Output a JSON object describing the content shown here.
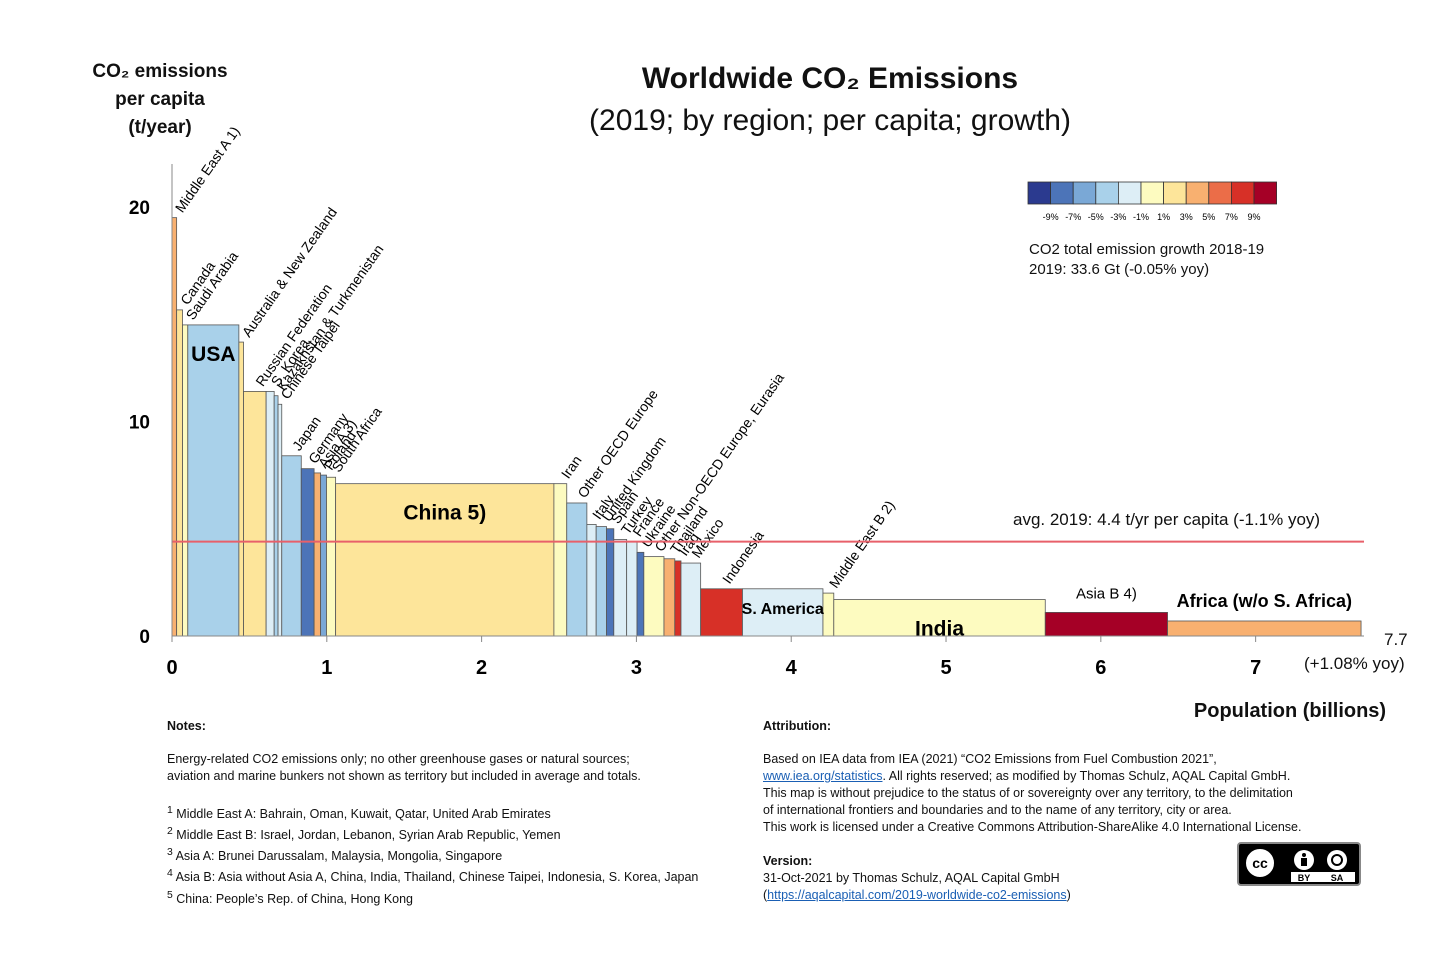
{
  "title": "Worldwide CO₂ Emissions",
  "subtitle": "(2019; by region; per capita; growth)",
  "y_axis_label": [
    "CO₂ emissions",
    "per capita",
    "(t/year)"
  ],
  "x_axis_label": "Population (billions)",
  "legend": {
    "colors": [
      "#2b3a8f",
      "#4c74b8",
      "#7aa8d6",
      "#a9d1ea",
      "#ddeef6",
      "#fdfbc0",
      "#fde59a",
      "#f8b070",
      "#eb6d48",
      "#d73027",
      "#a50026"
    ],
    "tick_labels": [
      "-9%",
      "-7%",
      "-5%",
      "-3%",
      "-1%",
      "1%",
      "3%",
      "5%",
      "7%",
      "9%"
    ],
    "note_line1": "CO2 total emission growth 2018-19",
    "note_line2": "2019: 33.6 Gt (-0.05% yoy)"
  },
  "average_label": "avg. 2019: 4.4 t/yr per capita (-1.1% yoy)",
  "total_population_label": "7.7",
  "total_growth_label": "(+1.08% yoy)",
  "chart_data": {
    "type": "variable-width bar",
    "x_unit": "billions of people",
    "y_unit": "t CO2 per capita per year",
    "xlim": [
      0,
      7.7
    ],
    "ylim": [
      0,
      22
    ],
    "x_ticks": [
      0,
      1,
      2,
      3,
      4,
      5,
      6,
      7
    ],
    "y_ticks": [
      0,
      10,
      20
    ],
    "average": 4.4,
    "regions": [
      {
        "label": "Middle East A 1)",
        "population": 0.03,
        "value": 19.5,
        "color": "#f8b070"
      },
      {
        "label": "Canada",
        "population": 0.038,
        "value": 15.2,
        "color": "#fde59a"
      },
      {
        "label": "Saudi Arabia",
        "population": 0.034,
        "value": 14.5,
        "color": "#fdfbc0"
      },
      {
        "label": "USA",
        "population": 0.33,
        "value": 14.5,
        "color": "#a9d1ea"
      },
      {
        "label": "Australia & New Zealand",
        "population": 0.03,
        "value": 13.7,
        "color": "#fde59a"
      },
      {
        "label": "Russian Federation",
        "population": 0.146,
        "value": 11.4,
        "color": "#fde59a"
      },
      {
        "label": "S. Korea",
        "population": 0.052,
        "value": 11.4,
        "color": "#ddeef6"
      },
      {
        "label": "Kazakhstan & Turkmenistan",
        "population": 0.025,
        "value": 11.2,
        "color": "#a9d1ea"
      },
      {
        "label": "Chinese Taipei",
        "population": 0.024,
        "value": 10.8,
        "color": "#ddeef6"
      },
      {
        "label": "Japan",
        "population": 0.126,
        "value": 8.4,
        "color": "#a9d1ea"
      },
      {
        "label": "Germany",
        "population": 0.083,
        "value": 7.8,
        "color": "#4c74b8"
      },
      {
        "label": "Asia A 3)",
        "population": 0.042,
        "value": 7.6,
        "color": "#f8b070"
      },
      {
        "label": "Poland",
        "population": 0.038,
        "value": 7.5,
        "color": "#7aa8d6"
      },
      {
        "label": "South Africa",
        "population": 0.059,
        "value": 7.4,
        "color": "#fdfbc0"
      },
      {
        "label": "China 5)",
        "population": 1.41,
        "value": 7.1,
        "color": "#fde59a"
      },
      {
        "label": "Iran",
        "population": 0.083,
        "value": 7.1,
        "color": "#fdfbc0"
      },
      {
        "label": "Other OECD Europe",
        "population": 0.13,
        "value": 6.2,
        "color": "#a9d1ea"
      },
      {
        "label": "Italy",
        "population": 0.06,
        "value": 5.2,
        "color": "#ddeef6"
      },
      {
        "label": "United Kingdom",
        "population": 0.067,
        "value": 5.1,
        "color": "#a9d1ea"
      },
      {
        "label": "Spain",
        "population": 0.047,
        "value": 5.0,
        "color": "#4c74b8"
      },
      {
        "label": "Turkey",
        "population": 0.083,
        "value": 4.5,
        "color": "#ddeef6"
      },
      {
        "label": "France",
        "population": 0.067,
        "value": 4.4,
        "color": "#ddeef6"
      },
      {
        "label": "Ukraine",
        "population": 0.044,
        "value": 3.9,
        "color": "#4c74b8"
      },
      {
        "label": "Other Non-OECD Europe, Eurasia",
        "population": 0.13,
        "value": 3.7,
        "color": "#fdfbc0"
      },
      {
        "label": "Thailand",
        "population": 0.07,
        "value": 3.6,
        "color": "#f8b070"
      },
      {
        "label": "Iraq",
        "population": 0.04,
        "value": 3.5,
        "color": "#d73027"
      },
      {
        "label": "Mexico",
        "population": 0.127,
        "value": 3.4,
        "color": "#ddeef6"
      },
      {
        "label": "Indonesia",
        "population": 0.27,
        "value": 2.2,
        "color": "#d73027"
      },
      {
        "label": "S. America",
        "population": 0.52,
        "value": 2.2,
        "color": "#ddeef6"
      },
      {
        "label": "Middle East B 2)",
        "population": 0.07,
        "value": 2.0,
        "color": "#fdfbc0"
      },
      {
        "label": "India",
        "population": 1.366,
        "value": 1.7,
        "color": "#fdfbc0"
      },
      {
        "label": "Asia B 4)",
        "population": 0.79,
        "value": 1.1,
        "color": "#a50026"
      },
      {
        "label": "Africa (w/o S. Africa)",
        "population": 1.25,
        "value": 0.7,
        "color": "#f8b070"
      }
    ]
  },
  "notes": {
    "heading": "Notes:",
    "line1": "Energy-related CO2 emissions only; no other greenhouse gases or natural sources;",
    "line2": "aviation and marine bunkers not shown as territory but included in average and totals.",
    "fn1": "Middle East A: Bahrain, Oman, Kuwait, Qatar, United Arab Emirates",
    "fn2": "Middle East B: Israel, Jordan, Lebanon, Syrian Arab Republic, Yemen",
    "fn3": "Asia A: Brunei Darussalam, Malaysia, Mongolia, Singapore",
    "fn4": "Asia B: Asia without Asia A, China, India, Thailand, Chinese Taipei, Indonesia, S. Korea, Japan",
    "fn5": "China: People’s Rep. of China, Hong Kong"
  },
  "attribution": {
    "heading": "Attribution:",
    "line1": "Based on IEA data from IEA (2021) “CO2 Emissions from Fuel Combustion 2021”,",
    "link1": "www.iea.org/statistics",
    "line2_rest": ". All rights reserved; as modified by Thomas Schulz, AQAL Capital GmbH.",
    "line3": "This map is without prejudice to the status of or sovereignty over any territory, to the delimitation",
    "line4": "of international frontiers and boundaries and to the name of any territory, city or area.",
    "line5": "This work is licensed under a Creative Commons Attribution-ShareAlike 4.0 International License.",
    "version_heading": "Version:",
    "version_line": "31-Oct-2021 by Thomas Schulz, AQAL Capital GmbH",
    "version_link": "https://aqalcapital.com/2019-worldwide-co2-emissions"
  },
  "license_badge": {
    "cc": "cc",
    "by": "BY",
    "sa": "SA"
  }
}
